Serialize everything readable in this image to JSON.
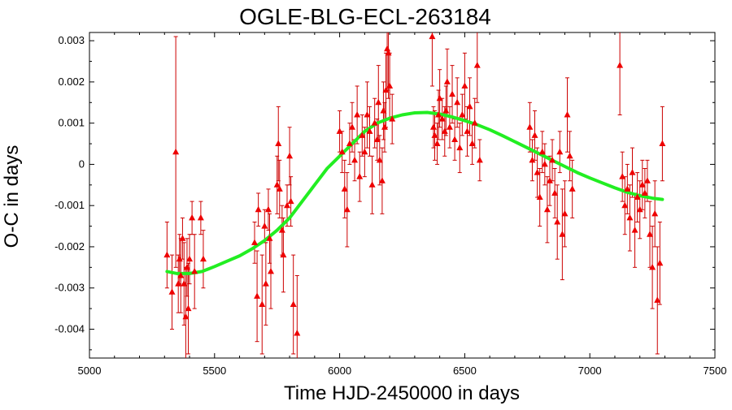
{
  "chart_data": {
    "type": "scatter",
    "title": "OGLE-BLG-ECL-263184",
    "xlabel": "Time HJD-2450000 in days",
    "ylabel": "O-C in days",
    "xlim": [
      5000,
      7500
    ],
    "ylim": [
      -0.0047,
      0.0032
    ],
    "xticks": [
      5000,
      5500,
      6000,
      6500,
      7000,
      7500
    ],
    "xtick_labels": [
      "5000",
      "5500",
      "6000",
      "6500",
      "7000",
      "7500"
    ],
    "yticks": [
      -0.004,
      -0.003,
      -0.002,
      -0.001,
      0,
      0.001,
      0.002,
      0.003
    ],
    "ytick_labels": [
      "-0.004",
      "-0.003",
      "-0.002",
      "-0.001",
      "0",
      "0.001",
      "0.002",
      "0.003"
    ],
    "grid": false,
    "colors": {
      "points": "#ee0000",
      "errorbars": "#cc0000",
      "fit": "#22ee22",
      "axes": "#000000"
    },
    "series": [
      {
        "kind": "points-with-errorbars",
        "x": [
          5310,
          5330,
          5345,
          5355,
          5360,
          5365,
          5372,
          5378,
          5385,
          5390,
          5395,
          5400,
          5410,
          5420,
          5445,
          5455,
          5660,
          5670,
          5675,
          5690,
          5700,
          5705,
          5715,
          5720,
          5725,
          5750,
          5755,
          5760,
          5770,
          5775,
          5790,
          5800,
          5805,
          5815,
          5830,
          6000,
          6010,
          6020,
          6030,
          6040,
          6050,
          6060,
          6070,
          6080,
          6090,
          6100,
          6110,
          6120,
          6130,
          6140,
          6150,
          6155,
          6160,
          6170,
          6175,
          6180,
          6185,
          6190,
          6195,
          6200,
          6210,
          6370,
          6375,
          6380,
          6390,
          6395,
          6400,
          6410,
          6420,
          6425,
          6430,
          6440,
          6450,
          6460,
          6470,
          6480,
          6490,
          6500,
          6510,
          6520,
          6530,
          6540,
          6550,
          6560,
          6760,
          6770,
          6780,
          6790,
          6800,
          6810,
          6820,
          6830,
          6840,
          6850,
          6860,
          6870,
          6880,
          6890,
          6900,
          6910,
          6920,
          6930,
          7120,
          7130,
          7140,
          7150,
          7160,
          7170,
          7180,
          7190,
          7200,
          7210,
          7220,
          7230,
          7240,
          7250,
          7260,
          7270,
          7280,
          7290
        ],
        "y": [
          -0.0022,
          -0.0031,
          0.0003,
          -0.0029,
          -0.0023,
          -0.0027,
          -0.0018,
          -0.0029,
          -0.0037,
          -0.0025,
          -0.0035,
          -0.0023,
          -0.0013,
          -0.0026,
          -0.0013,
          -0.0023,
          -0.0019,
          -0.0032,
          -0.0011,
          -0.0034,
          -0.0015,
          -0.0029,
          -0.0011,
          -0.0018,
          -0.0026,
          -0.0005,
          0.0005,
          -0.0006,
          -0.0016,
          -0.0022,
          -0.001,
          0.0002,
          -0.0009,
          -0.0034,
          -0.0041,
          0.0008,
          0.0003,
          -0.0006,
          -0.0011,
          0.0005,
          0.0009,
          0.0001,
          0.0012,
          -0.0003,
          0.0007,
          0.0003,
          0.0012,
          0.0008,
          -0.0005,
          0.001,
          0.0006,
          0.0015,
          0.0001,
          -0.0004,
          0.0013,
          0.0009,
          0.0018,
          0.0028,
          0.0027,
          0.0019,
          0.0011,
          0.0031,
          0.0009,
          0.0007,
          0.0005,
          0.0012,
          0.0016,
          0.0011,
          0.0008,
          0.0013,
          0.002,
          0.0009,
          0.0017,
          0.0006,
          0.0015,
          0.0004,
          0.0012,
          0.0019,
          0.0008,
          0.0014,
          0.0005,
          0.001,
          0.0024,
          0.0001,
          0.0009,
          0.0001,
          0.0007,
          -0.0002,
          -0.0008,
          0.0003,
          0.0,
          -0.0011,
          -0.0004,
          0.0001,
          -0.0007,
          -0.0014,
          0.0003,
          -0.0017,
          -0.0012,
          0.0012,
          0.0002,
          -0.0006,
          0.0024,
          -0.0003,
          -0.001,
          -0.0006,
          -0.0013,
          -0.0002,
          -0.0016,
          -0.0008,
          -0.0011,
          -0.0005,
          -0.0007,
          -0.0004,
          -0.0017,
          -0.0025,
          -0.0012,
          -0.0033,
          -0.0024,
          0.0005
        ],
        "yerr": [
          0.0008,
          0.0009,
          0.0028,
          0.0007,
          0.0006,
          0.0009,
          0.0005,
          0.001,
          0.0012,
          0.0007,
          0.0011,
          0.0006,
          0.0004,
          0.0009,
          0.0004,
          0.0007,
          0.0005,
          0.0011,
          0.0004,
          0.0012,
          0.0004,
          0.001,
          0.0005,
          0.0006,
          0.0009,
          0.0007,
          0.0009,
          0.0007,
          0.0006,
          0.0009,
          0.0005,
          0.0007,
          0.0006,
          0.0012,
          0.0014,
          0.0005,
          0.0005,
          0.0007,
          0.0009,
          0.0005,
          0.0006,
          0.0005,
          0.0007,
          0.0006,
          0.0005,
          0.0006,
          0.0008,
          0.0006,
          0.0007,
          0.0006,
          0.0005,
          0.0009,
          0.0006,
          0.0008,
          0.0007,
          0.0006,
          0.0009,
          0.001,
          0.0011,
          0.0008,
          0.0006,
          0.0012,
          0.0005,
          0.0006,
          0.0005,
          0.0006,
          0.0007,
          0.0005,
          0.0006,
          0.0006,
          0.0008,
          0.0005,
          0.0007,
          0.0005,
          0.0006,
          0.0006,
          0.0005,
          0.0008,
          0.0006,
          0.0007,
          0.0005,
          0.0006,
          0.0009,
          0.0005,
          0.0006,
          0.0005,
          0.0006,
          0.0006,
          0.0007,
          0.0005,
          0.0005,
          0.0008,
          0.0006,
          0.0005,
          0.0006,
          0.0009,
          0.0005,
          0.0011,
          0.0008,
          0.0009,
          0.0006,
          0.0007,
          0.0012,
          0.0006,
          0.0007,
          0.0006,
          0.0008,
          0.0006,
          0.0009,
          0.0006,
          0.0007,
          0.0006,
          0.0006,
          0.0005,
          0.0008,
          0.001,
          0.0008,
          0.0013,
          0.001,
          0.0009
        ]
      },
      {
        "kind": "fit-curve",
        "x": [
          5310,
          5350,
          5400,
          5450,
          5500,
          5550,
          5600,
          5650,
          5700,
          5750,
          5800,
          5850,
          5900,
          5950,
          6000,
          6050,
          6100,
          6150,
          6200,
          6250,
          6300,
          6350,
          6400,
          6450,
          6500,
          6550,
          6600,
          6650,
          6700,
          6750,
          6800,
          6850,
          6900,
          6950,
          7000,
          7050,
          7100,
          7150,
          7200,
          7250,
          7290
        ],
        "y": [
          -0.0026,
          -0.00265,
          -0.00265,
          -0.0026,
          -0.00248,
          -0.00235,
          -0.00222,
          -0.00205,
          -0.00185,
          -0.0016,
          -0.0013,
          -0.0009,
          -0.0005,
          -0.0001,
          0.0002,
          0.0005,
          0.0008,
          0.001,
          0.00112,
          0.0012,
          0.00125,
          0.00126,
          0.00122,
          0.00115,
          0.00106,
          0.00096,
          0.00084,
          0.0007,
          0.00055,
          0.0004,
          0.00025,
          0.0001,
          -5e-05,
          -0.0002,
          -0.00033,
          -0.00045,
          -0.00057,
          -0.00068,
          -0.00076,
          -0.00082,
          -0.00085
        ]
      }
    ]
  }
}
